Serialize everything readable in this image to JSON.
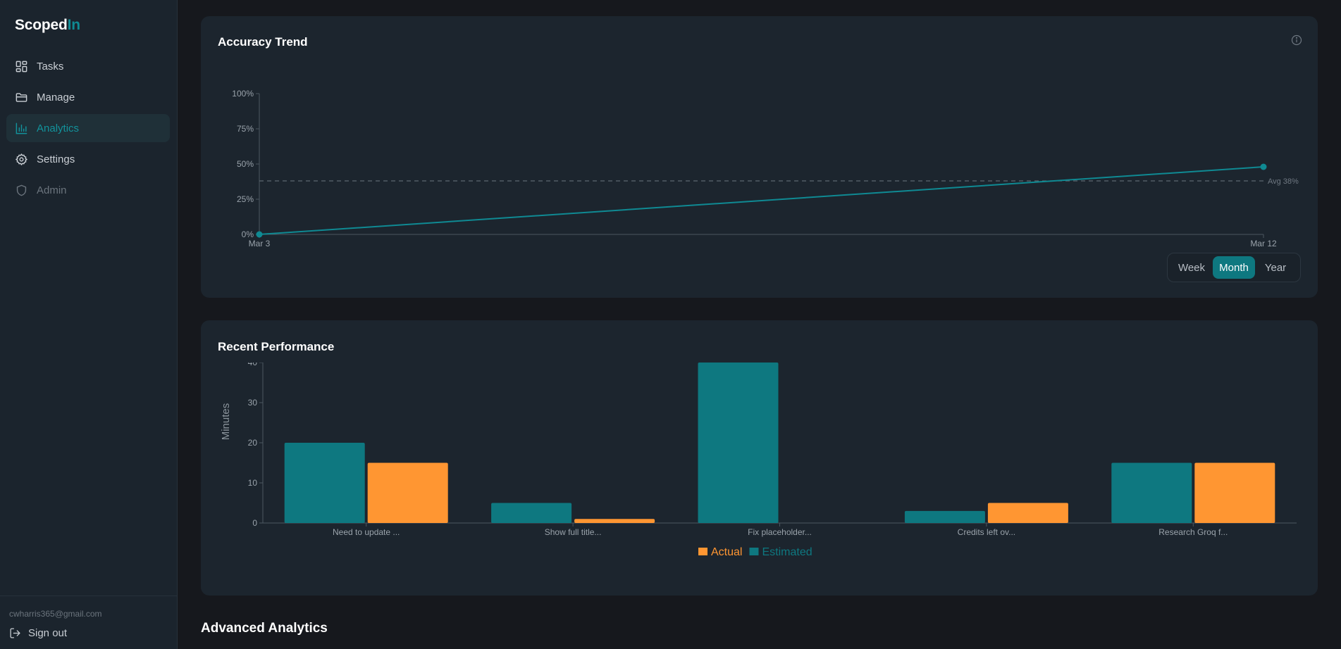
{
  "app": {
    "logo_main": "Scoped",
    "logo_accent": "In"
  },
  "sidebar": {
    "items": [
      {
        "label": "Tasks",
        "icon": "grid-icon",
        "state": "normal"
      },
      {
        "label": "Manage",
        "icon": "folder-icon",
        "state": "normal"
      },
      {
        "label": "Analytics",
        "icon": "bar-chart-icon",
        "state": "active"
      },
      {
        "label": "Settings",
        "icon": "gear-icon",
        "state": "normal"
      },
      {
        "label": "Admin",
        "icon": "shield-icon",
        "state": "disabled"
      }
    ],
    "user_email": "cwharris365@gmail.com",
    "signout_label": "Sign out"
  },
  "accuracy": {
    "title": "Accuracy Trend",
    "toggle": {
      "week": "Week",
      "month": "Month",
      "year": "Year",
      "selected": "Month"
    }
  },
  "performance": {
    "title": "Recent Performance"
  },
  "advanced": {
    "title": "Advanced Analytics"
  },
  "colors": {
    "accent": "#0e7880",
    "actual": "#ff9632",
    "estimated": "#0e7880"
  },
  "chart_data": [
    {
      "type": "line",
      "title": "Accuracy Trend",
      "x": [
        "Mar 3",
        "Mar 12"
      ],
      "series": [
        {
          "values": [
            0,
            48
          ]
        }
      ],
      "y_unit": "%",
      "ylim": [
        0,
        100
      ],
      "y_ticks": [
        "0%",
        "25%",
        "50%",
        "75%",
        "100%"
      ],
      "reference_line": {
        "value": 38,
        "label": "Avg 38%"
      },
      "grid": false
    },
    {
      "type": "bar",
      "title": "Recent Performance",
      "ylabel": "Minutes",
      "ylim": [
        0,
        40
      ],
      "y_ticks": [
        0,
        10,
        20,
        30,
        40
      ],
      "categories": [
        "Need to update ...",
        "Show full title...",
        "Fix placeholder...",
        "Credits left ov...",
        "Research Groq f..."
      ],
      "series": [
        {
          "name": "Estimated",
          "color": "#0e7880",
          "values": [
            20,
            5,
            40,
            3,
            15
          ]
        },
        {
          "name": "Actual",
          "color": "#ff9632",
          "values": [
            15,
            1,
            0,
            5,
            15
          ]
        }
      ],
      "legend": [
        "Actual",
        "Estimated"
      ],
      "legend_placement": "bottom-center"
    }
  ]
}
